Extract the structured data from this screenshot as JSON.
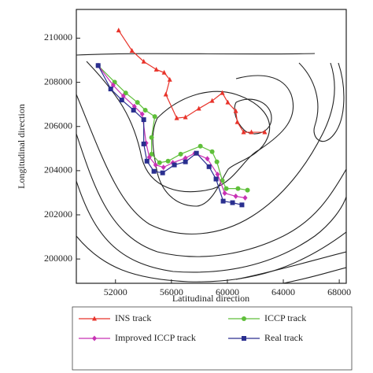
{
  "chart_data": {
    "type": "line",
    "xlabel": "Latitudinal direction",
    "ylabel": "Longitudinal direction",
    "xlim": [
      49200,
      68500
    ],
    "ylim": [
      198900,
      211300
    ],
    "xticks": [
      52000,
      56000,
      60000,
      64000,
      68000
    ],
    "yticks": [
      200000,
      202000,
      204000,
      206000,
      208000,
      210000
    ],
    "series": [
      {
        "name": "INS track",
        "color": "#e8332a",
        "marker": "triangle",
        "x": [
          52225,
          53180,
          54020,
          54920,
          55480,
          55880,
          55600,
          56380,
          57000,
          57960,
          58910,
          59640,
          60030,
          60600,
          60710,
          61160,
          61720,
          62670
        ],
        "values": [
          210350,
          209430,
          208940,
          208580,
          208440,
          208120,
          207450,
          206380,
          206420,
          206810,
          207160,
          207520,
          207090,
          206700,
          206200,
          205740,
          205740,
          205740
        ]
      },
      {
        "name": "ICCP track",
        "color": "#5fbf3a",
        "marker": "circle",
        "x": [
          50760,
          51940,
          52730,
          53570,
          54130,
          54810,
          54580,
          54580,
          55150,
          55760,
          56660,
          58070,
          58910,
          59250,
          59640,
          59920,
          60760,
          61440
        ],
        "values": [
          208760,
          208010,
          207520,
          207090,
          206740,
          206450,
          205500,
          204750,
          204360,
          204430,
          204750,
          205110,
          204860,
          204400,
          203550,
          203190,
          203190,
          203120
        ]
      },
      {
        "name": "Improved ICCP track",
        "color": "#c832b4",
        "marker": "diamond",
        "x": [
          50760,
          51830,
          52560,
          53350,
          53910,
          54190,
          54420,
          54870,
          55430,
          56100,
          57000,
          57670,
          58570,
          59300,
          59810,
          60600,
          61270
        ],
        "values": [
          208760,
          207870,
          207380,
          206910,
          206560,
          205250,
          204610,
          204260,
          204150,
          204360,
          204570,
          204790,
          204540,
          203830,
          202980,
          202840,
          202770
        ]
      },
      {
        "name": "Real track",
        "color": "#2a2f8f",
        "marker": "square",
        "x": [
          50760,
          51660,
          52450,
          53290,
          54020,
          54020,
          54250,
          54750,
          55370,
          56210,
          57000,
          57790,
          58690,
          59190,
          59700,
          60370,
          61040
        ],
        "values": [
          208760,
          207700,
          207200,
          206740,
          206310,
          205210,
          204430,
          203970,
          203900,
          204260,
          204400,
          204790,
          204180,
          203620,
          202620,
          202550,
          202450
        ]
      }
    ]
  }
}
